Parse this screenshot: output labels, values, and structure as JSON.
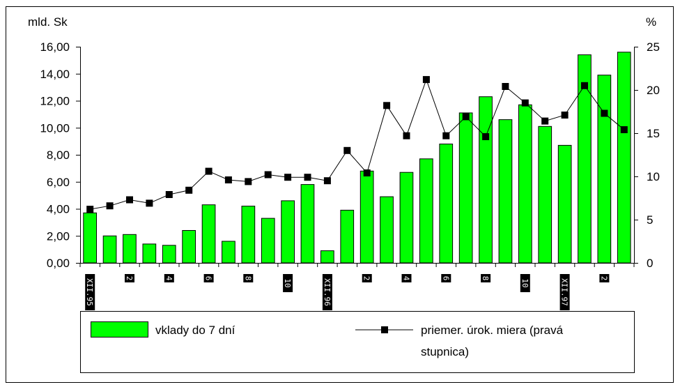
{
  "chart_data": {
    "type": "bar+line",
    "left_axis_unit": "mld. Sk",
    "right_axis_unit": "%",
    "left_ylim": [
      0,
      16
    ],
    "left_ticks": [
      "0,00",
      "2,00",
      "4,00",
      "6,00",
      "8,00",
      "10,00",
      "12,00",
      "14,00",
      "16,00"
    ],
    "right_ylim": [
      0,
      25
    ],
    "right_ticks": [
      "0",
      "5",
      "10",
      "15",
      "20",
      "25"
    ],
    "x_labels": [
      "XII.95",
      "",
      "2",
      "",
      "4",
      "",
      "6",
      "",
      "8",
      "",
      "10",
      "",
      "XII.96",
      "",
      "2",
      "",
      "4",
      "",
      "6",
      "",
      "8",
      "",
      "10",
      "",
      "XII.97",
      "",
      "2",
      ""
    ],
    "series": [
      {
        "name": "vklady do 7 dní",
        "type": "bar",
        "axis": "left",
        "color": "#00ff00",
        "values": [
          3.7,
          2.0,
          2.1,
          1.4,
          1.3,
          2.4,
          4.3,
          1.6,
          4.2,
          3.3,
          4.6,
          5.8,
          0.9,
          3.9,
          6.8,
          4.9,
          6.7,
          7.7,
          8.8,
          11.1,
          12.3,
          10.6,
          11.7,
          10.1,
          8.7,
          15.4,
          13.9,
          15.6
        ]
      },
      {
        "name": "priemer. úrok. miera (pravá stupnica)",
        "type": "line",
        "axis": "right",
        "color": "#000000",
        "values": [
          6.2,
          6.6,
          7.3,
          6.9,
          7.9,
          8.4,
          10.6,
          9.6,
          9.4,
          10.2,
          9.9,
          9.9,
          9.5,
          13.0,
          10.4,
          18.2,
          14.7,
          21.2,
          14.7,
          16.9,
          14.6,
          20.4,
          18.5,
          16.4,
          17.1,
          20.5,
          17.3,
          15.4
        ]
      }
    ],
    "legend": {
      "position": "bottom",
      "bar_label": "vklady do 7 dní",
      "line_label_1": "priemer. úrok. miera (pravá",
      "line_label_2": "stupnica)"
    },
    "grid": false
  }
}
